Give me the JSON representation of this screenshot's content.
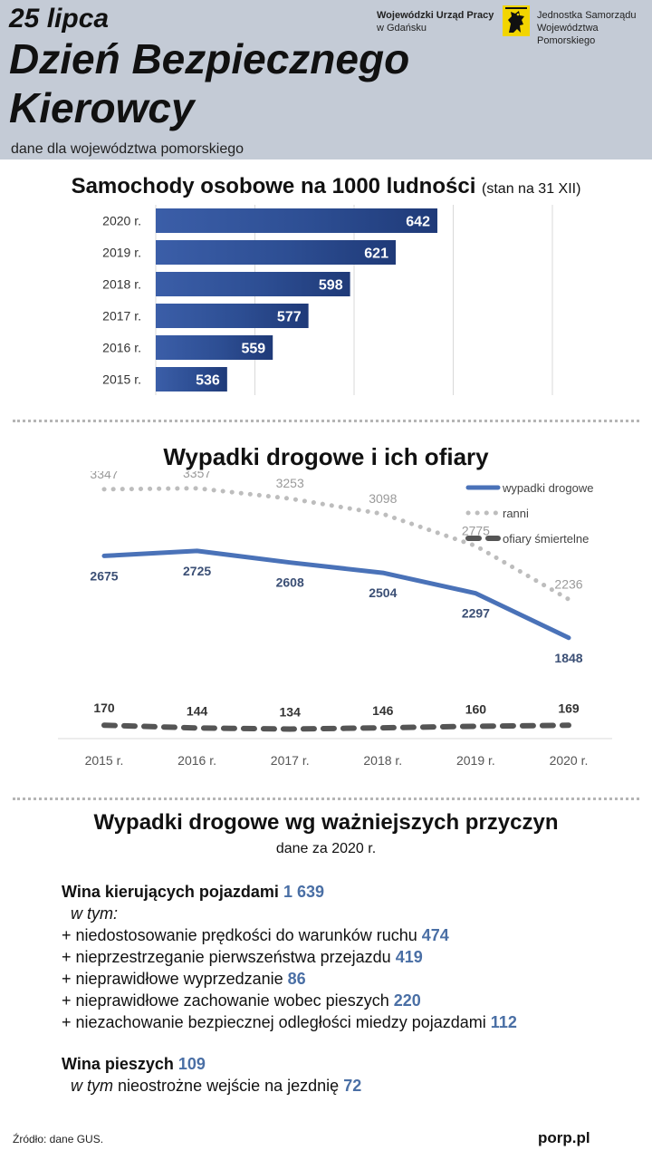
{
  "header": {
    "date": "25 lipca",
    "title_line1": "Dzień Bezpiecznego",
    "title_line2": "Kierowcy",
    "subtitle": "dane dla województwa pomorskiego",
    "org1_name": "Wojewódzki Urząd Pracy",
    "org1_city": "w Gdańsku",
    "org2_line1": "Jednostka Samorządu",
    "org2_line2": "Województwa Pomorskiego",
    "colors": {
      "background": "#c4cbd6",
      "logo_yellow": "#f2d500",
      "logo_black": "#111111"
    }
  },
  "chart_data": [
    {
      "type": "bar",
      "orientation": "horizontal",
      "title": "Samochody osobowe na 1000 ludności",
      "title_note": "(stan na 31 XII)",
      "categories": [
        "2020 r.",
        "2019 r.",
        "2018 r.",
        "2017 r.",
        "2016 r.",
        "2015 r."
      ],
      "values": [
        642,
        621,
        598,
        577,
        559,
        536
      ],
      "xlim": [
        500,
        700
      ],
      "grid": true,
      "bar_color": "#2a4a8a"
    },
    {
      "type": "line",
      "title": "Wypadki drogowe i ich ofiary",
      "categories": [
        "2015 r.",
        "2016 r.",
        "2017 r.",
        "2018 r.",
        "2019 r.",
        "2020 r."
      ],
      "legend_position": "top-right",
      "series": [
        {
          "name": "wypadki drogowe",
          "values": [
            2675,
            2725,
            2608,
            2504,
            2297,
            1848
          ],
          "color": "#4a72b8",
          "style": "solid"
        },
        {
          "name": "ranni",
          "values": [
            3347,
            3357,
            3253,
            3098,
            2775,
            2236
          ],
          "color": "#bdbdbd",
          "style": "dotted"
        },
        {
          "name": "ofiary śmiertelne",
          "values": [
            170,
            144,
            134,
            146,
            160,
            169
          ],
          "color": "#555555",
          "style": "dashed"
        }
      ]
    }
  ],
  "causes": {
    "title": "Wypadki drogowe wg ważniejszych przyczyn",
    "subtitle": "dane za 2020 r.",
    "drivers": {
      "label": "Wina kierujących pojazdami",
      "value": "1 639",
      "in_that": "w tym:",
      "items": [
        {
          "label": "+ niedostosowanie prędkości do warunków ruchu",
          "value": "474"
        },
        {
          "label": "+ nieprzestrzeganie pierwszeństwa przejazdu",
          "value": "419"
        },
        {
          "label": "+ nieprawidłowe wyprzedzanie",
          "value": "86"
        },
        {
          "label": "+ nieprawidłowe zachowanie wobec pieszych",
          "value": "220"
        },
        {
          "label": "+ niezachowanie bezpiecznej odległości miedzy pojazdami",
          "value": "112"
        }
      ]
    },
    "pedestrians": {
      "label": "Wina pieszych",
      "value": "109",
      "in_that": "w tym",
      "item_label": "nieostrożne wejście na jezdnię",
      "item_value": "72"
    },
    "value_color": "#4a6fa5"
  },
  "footer": {
    "source": "Źródło: dane GUS.",
    "site": "porp.pl"
  }
}
